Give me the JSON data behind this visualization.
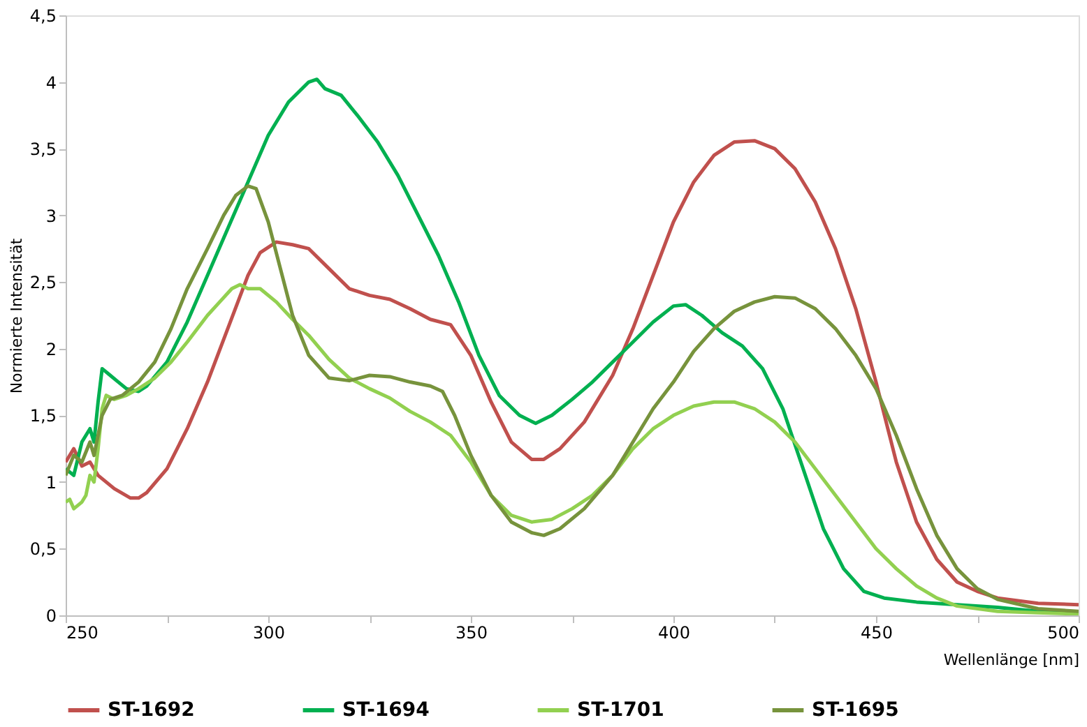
{
  "chart_data": {
    "type": "line",
    "xlabel": "Wellenlänge [nm]",
    "ylabel": "Normierte Intensität",
    "xlim": [
      250,
      500
    ],
    "ylim": [
      0,
      4.5
    ],
    "xticks": [
      250,
      {
        "value": 275,
        "label": null
      },
      300,
      {
        "value": 325,
        "label": null
      },
      350,
      {
        "value": 375,
        "label": null
      },
      400,
      {
        "value": 425,
        "label": null
      },
      450,
      {
        "value": 475,
        "label": null
      },
      500
    ],
    "yticks": [
      0,
      {
        "value": 0.5,
        "label": "0,5"
      },
      1,
      {
        "value": 1.5,
        "label": "1,5"
      },
      2,
      {
        "value": 2.5,
        "label": "2,5"
      },
      3,
      {
        "value": 3.5,
        "label": "3,5"
      },
      4,
      {
        "value": 4.5,
        "label": "4,5"
      }
    ],
    "grid": false,
    "legend": "bottom",
    "marker": "none",
    "line_style": "solid",
    "series": [
      {
        "name": "ST-1692",
        "color": "#c0504d",
        "x": [
          250,
          252,
          254,
          256,
          258,
          262,
          266,
          268,
          270,
          275,
          280,
          285,
          290,
          295,
          298,
          302,
          306,
          310,
          315,
          320,
          325,
          330,
          335,
          340,
          345,
          350,
          355,
          360,
          365,
          368,
          372,
          378,
          385,
          390,
          395,
          400,
          405,
          410,
          415,
          420,
          425,
          430,
          435,
          440,
          445,
          450,
          455,
          460,
          465,
          470,
          475,
          480,
          490,
          500
        ],
        "values": [
          1.15,
          1.25,
          1.12,
          1.15,
          1.05,
          0.95,
          0.88,
          0.88,
          0.92,
          1.1,
          1.4,
          1.75,
          2.15,
          2.55,
          2.72,
          2.8,
          2.78,
          2.75,
          2.6,
          2.45,
          2.4,
          2.37,
          2.3,
          2.22,
          2.18,
          1.95,
          1.6,
          1.3,
          1.17,
          1.17,
          1.25,
          1.45,
          1.8,
          2.15,
          2.55,
          2.95,
          3.25,
          3.45,
          3.55,
          3.56,
          3.5,
          3.35,
          3.1,
          2.75,
          2.3,
          1.75,
          1.15,
          0.7,
          0.42,
          0.25,
          0.18,
          0.13,
          0.09,
          0.08
        ]
      },
      {
        "name": "ST-1694",
        "color": "#00b050",
        "x": [
          250,
          252,
          254,
          256,
          257,
          258,
          259,
          261,
          263,
          265,
          268,
          270,
          275,
          280,
          285,
          290,
          295,
          300,
          305,
          310,
          312,
          314,
          318,
          322,
          327,
          332,
          337,
          342,
          347,
          352,
          357,
          362,
          366,
          370,
          375,
          380,
          385,
          390,
          395,
          400,
          403,
          407,
          412,
          417,
          422,
          427,
          432,
          437,
          442,
          447,
          452,
          460,
          470,
          480,
          490,
          500
        ],
        "values": [
          1.1,
          1.05,
          1.3,
          1.4,
          1.3,
          1.6,
          1.85,
          1.8,
          1.75,
          1.7,
          1.68,
          1.72,
          1.9,
          2.2,
          2.55,
          2.9,
          3.25,
          3.6,
          3.85,
          4.0,
          4.02,
          3.95,
          3.9,
          3.75,
          3.55,
          3.3,
          3.0,
          2.7,
          2.35,
          1.95,
          1.65,
          1.5,
          1.44,
          1.5,
          1.62,
          1.75,
          1.9,
          2.05,
          2.2,
          2.32,
          2.33,
          2.25,
          2.12,
          2.02,
          1.85,
          1.55,
          1.1,
          0.65,
          0.35,
          0.18,
          0.13,
          0.1,
          0.08,
          0.06,
          0.03,
          0.02
        ]
      },
      {
        "name": "ST-1701",
        "color": "#92d050",
        "x": [
          250,
          251,
          252,
          254,
          255,
          256,
          257,
          258,
          259,
          260,
          262,
          265,
          268,
          272,
          276,
          280,
          285,
          288,
          291,
          293,
          295,
          298,
          302,
          306,
          310,
          315,
          320,
          325,
          330,
          335,
          340,
          345,
          350,
          355,
          360,
          365,
          370,
          375,
          380,
          385,
          390,
          395,
          400,
          405,
          410,
          415,
          420,
          425,
          430,
          435,
          440,
          445,
          450,
          455,
          460,
          465,
          470,
          480,
          490,
          500
        ],
        "values": [
          0.85,
          0.87,
          0.8,
          0.85,
          0.9,
          1.05,
          1.0,
          1.25,
          1.55,
          1.65,
          1.62,
          1.65,
          1.7,
          1.78,
          1.9,
          2.05,
          2.25,
          2.35,
          2.45,
          2.48,
          2.45,
          2.45,
          2.35,
          2.22,
          2.1,
          1.92,
          1.78,
          1.7,
          1.63,
          1.53,
          1.45,
          1.35,
          1.15,
          0.9,
          0.75,
          0.7,
          0.72,
          0.8,
          0.9,
          1.05,
          1.25,
          1.4,
          1.5,
          1.57,
          1.6,
          1.6,
          1.55,
          1.45,
          1.3,
          1.1,
          0.9,
          0.7,
          0.5,
          0.35,
          0.22,
          0.13,
          0.07,
          0.03,
          0.02,
          0.01
        ]
      },
      {
        "name": "ST-1695",
        "color": "#77933c",
        "x": [
          250,
          252,
          254,
          256,
          257,
          259,
          261,
          264,
          268,
          272,
          276,
          280,
          285,
          289,
          292,
          295,
          297,
          300,
          303,
          306,
          310,
          315,
          320,
          325,
          330,
          335,
          340,
          343,
          346,
          350,
          355,
          360,
          365,
          368,
          372,
          378,
          385,
          390,
          395,
          400,
          405,
          410,
          415,
          420,
          425,
          430,
          435,
          440,
          445,
          450,
          455,
          460,
          465,
          470,
          475,
          480,
          490,
          500
        ],
        "values": [
          1.05,
          1.2,
          1.15,
          1.3,
          1.2,
          1.5,
          1.62,
          1.65,
          1.75,
          1.9,
          2.15,
          2.45,
          2.75,
          3.0,
          3.15,
          3.22,
          3.2,
          2.95,
          2.6,
          2.25,
          1.95,
          1.78,
          1.76,
          1.8,
          1.79,
          1.75,
          1.72,
          1.68,
          1.5,
          1.2,
          0.9,
          0.7,
          0.62,
          0.6,
          0.65,
          0.8,
          1.05,
          1.3,
          1.55,
          1.75,
          1.98,
          2.15,
          2.28,
          2.35,
          2.39,
          2.38,
          2.3,
          2.15,
          1.95,
          1.7,
          1.35,
          0.95,
          0.6,
          0.35,
          0.2,
          0.12,
          0.05,
          0.03
        ]
      }
    ]
  }
}
